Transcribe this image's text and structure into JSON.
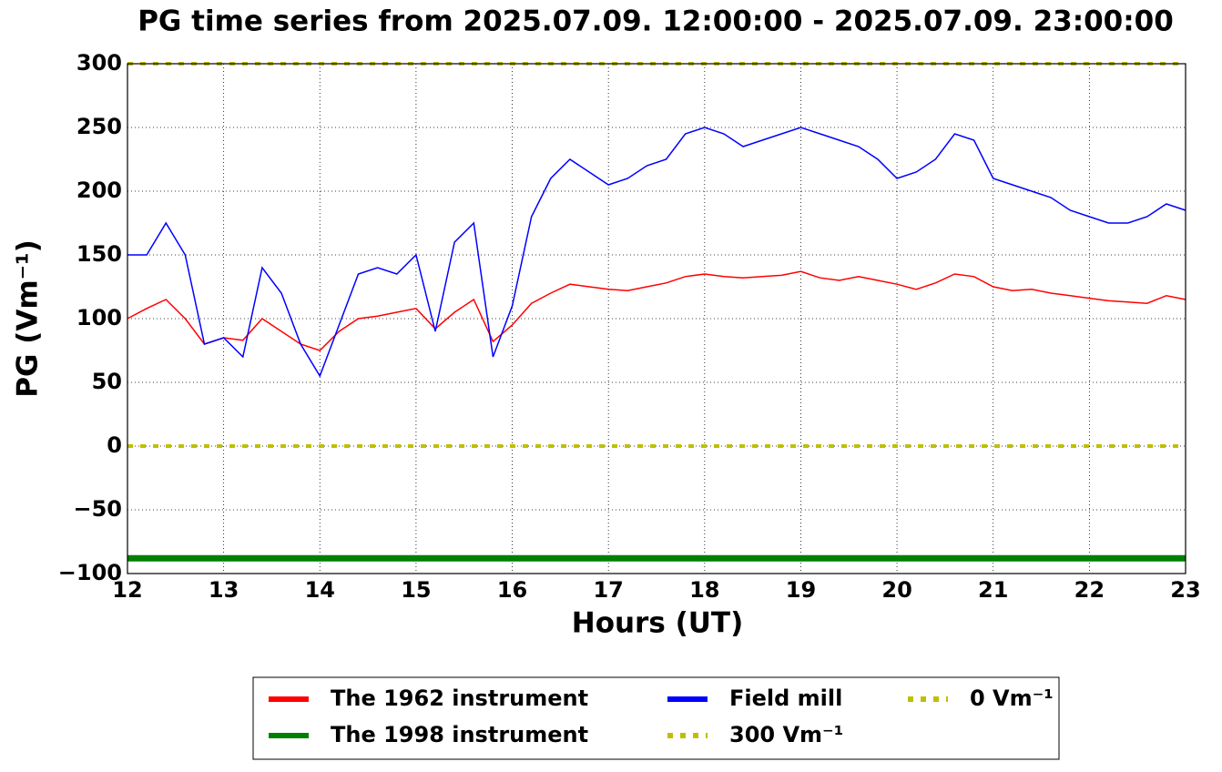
{
  "chart_data": {
    "type": "line",
    "title": "PG time series from 2025.07.09. 12:00:00 - 2025.07.09. 23:00:00",
    "xlabel": "Hours (UT)",
    "ylabel": "PG (Vm⁻¹)",
    "x": [
      12.0,
      12.2,
      12.4,
      12.6,
      12.8,
      13.0,
      13.2,
      13.4,
      13.6,
      13.8,
      14.0,
      14.2,
      14.4,
      14.6,
      14.8,
      15.0,
      15.2,
      15.4,
      15.6,
      15.8,
      16.0,
      16.2,
      16.4,
      16.6,
      16.8,
      17.0,
      17.2,
      17.4,
      17.6,
      17.8,
      18.0,
      18.2,
      18.4,
      18.6,
      18.8,
      19.0,
      19.2,
      19.4,
      19.6,
      19.8,
      20.0,
      20.2,
      20.4,
      20.6,
      20.8,
      21.0,
      21.2,
      21.4,
      21.6,
      21.8,
      22.0,
      22.2,
      22.4,
      22.6,
      22.8,
      23.0
    ],
    "series": [
      {
        "name": "The 1962 instrument",
        "color": "#ff0000",
        "width": 1.5,
        "values": [
          100,
          108,
          115,
          100,
          80,
          85,
          83,
          100,
          90,
          80,
          75,
          90,
          100,
          102,
          105,
          108,
          92,
          105,
          115,
          82,
          95,
          112,
          120,
          127,
          125,
          123,
          122,
          125,
          128,
          133,
          135,
          133,
          132,
          133,
          134,
          137,
          132,
          130,
          133,
          130,
          127,
          123,
          128,
          135,
          133,
          125,
          122,
          123,
          120,
          118,
          116,
          114,
          113,
          112,
          118,
          115
        ]
      },
      {
        "name": "The 1998 instrument",
        "color": "#008000",
        "width": 7,
        "level": -88
      },
      {
        "name": "Field mill",
        "color": "#0000ff",
        "width": 1.5,
        "values": [
          150,
          150,
          175,
          150,
          80,
          85,
          70,
          140,
          120,
          80,
          55,
          95,
          135,
          140,
          135,
          150,
          90,
          160,
          175,
          70,
          110,
          180,
          210,
          225,
          215,
          205,
          210,
          220,
          225,
          245,
          250,
          245,
          235,
          240,
          245,
          250,
          245,
          240,
          235,
          225,
          210,
          215,
          225,
          245,
          240,
          210,
          205,
          200,
          195,
          185,
          180,
          175,
          175,
          180,
          190,
          185
        ]
      },
      {
        "name": "300 Vm⁻¹",
        "color": "#bfbf00",
        "width": 4,
        "dash": "6,8",
        "level": 300
      },
      {
        "name": "0 Vm⁻¹",
        "color": "#bfbf00",
        "width": 4,
        "dash": "6,8",
        "level": 0
      }
    ],
    "xlim": [
      12,
      23
    ],
    "xticks": [
      12,
      13,
      14,
      15,
      16,
      17,
      18,
      19,
      20,
      21,
      22,
      23
    ],
    "ylim": [
      -100,
      300
    ],
    "yticks": [
      {
        "value": -100,
        "label": "−100"
      },
      {
        "value": -50,
        "label": "−50"
      },
      0,
      50,
      100,
      150,
      200,
      250,
      300
    ],
    "grid": true,
    "legend": "below"
  }
}
